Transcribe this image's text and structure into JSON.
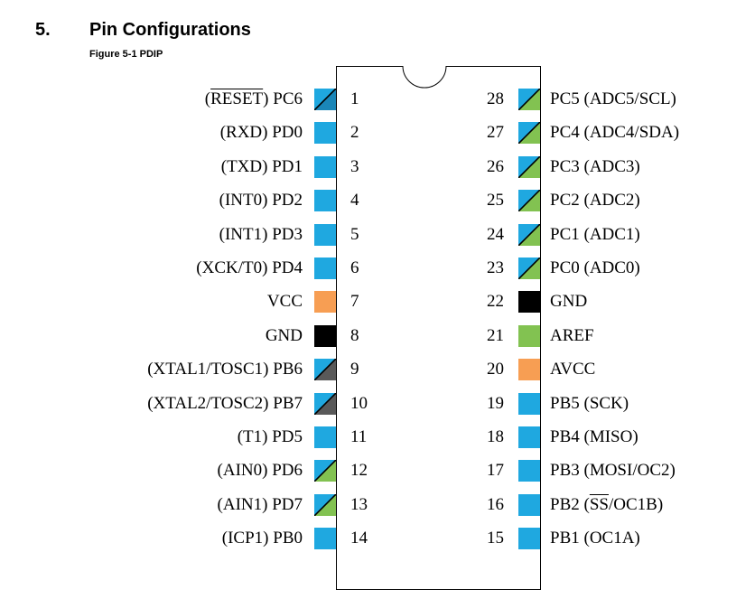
{
  "section": {
    "number": "5.",
    "title": "Pin Configurations"
  },
  "figure": {
    "caption": "Figure 5-1  PDIP"
  },
  "colors": {
    "blue": "#1fa8e0",
    "blue_dark": "#1a86b8",
    "orange": "#f79e53",
    "black": "#000000",
    "green": "#82c251",
    "gray": "#595959"
  },
  "left_pins": [
    {
      "num": "1",
      "pre": "(",
      "over": "RESET",
      "post": ") PC6",
      "style": "blue-diag"
    },
    {
      "num": "2",
      "label": "(RXD) PD0",
      "style": "blue"
    },
    {
      "num": "3",
      "label": "(TXD) PD1",
      "style": "blue"
    },
    {
      "num": "4",
      "label": "(INT0) PD2",
      "style": "blue"
    },
    {
      "num": "5",
      "label": "(INT1) PD3",
      "style": "blue"
    },
    {
      "num": "6",
      "label": "(XCK/T0) PD4",
      "style": "blue"
    },
    {
      "num": "7",
      "label": "VCC",
      "style": "orange"
    },
    {
      "num": "8",
      "label": "GND",
      "style": "black"
    },
    {
      "num": "9",
      "label": "(XTAL1/TOSC1) PB6",
      "style": "blue-gray"
    },
    {
      "num": "10",
      "label": "(XTAL2/TOSC2) PB7",
      "style": "blue-gray"
    },
    {
      "num": "11",
      "label": "(T1) PD5",
      "style": "blue"
    },
    {
      "num": "12",
      "label": "(AIN0) PD6",
      "style": "blue-green"
    },
    {
      "num": "13",
      "label": "(AIN1) PD7",
      "style": "blue-green"
    },
    {
      "num": "14",
      "label": "(ICP1) PB0",
      "style": "blue"
    }
  ],
  "right_pins": [
    {
      "num": "28",
      "label": "PC5 (ADC5/SCL)",
      "style": "blue-green"
    },
    {
      "num": "27",
      "label": "PC4 (ADC4/SDA)",
      "style": "blue-green"
    },
    {
      "num": "26",
      "label": "PC3 (ADC3)",
      "style": "blue-green"
    },
    {
      "num": "25",
      "label": "PC2 (ADC2)",
      "style": "blue-green"
    },
    {
      "num": "24",
      "label": "PC1 (ADC1)",
      "style": "blue-green"
    },
    {
      "num": "23",
      "label": "PC0 (ADC0)",
      "style": "blue-green"
    },
    {
      "num": "22",
      "label": "GND",
      "style": "black"
    },
    {
      "num": "21",
      "label": "AREF",
      "style": "green"
    },
    {
      "num": "20",
      "label": "AVCC",
      "style": "orange"
    },
    {
      "num": "19",
      "label": "PB5 (SCK)",
      "style": "blue"
    },
    {
      "num": "18",
      "label": "PB4 (MISO)",
      "style": "blue"
    },
    {
      "num": "17",
      "label": "PB3 (MOSI/OC2)",
      "style": "blue"
    },
    {
      "num": "16",
      "pre": "PB2 (",
      "over": "SS",
      "post": "/OC1B)",
      "style": "blue"
    },
    {
      "num": "15",
      "label": "PB1 (OC1A)",
      "style": "blue"
    }
  ]
}
